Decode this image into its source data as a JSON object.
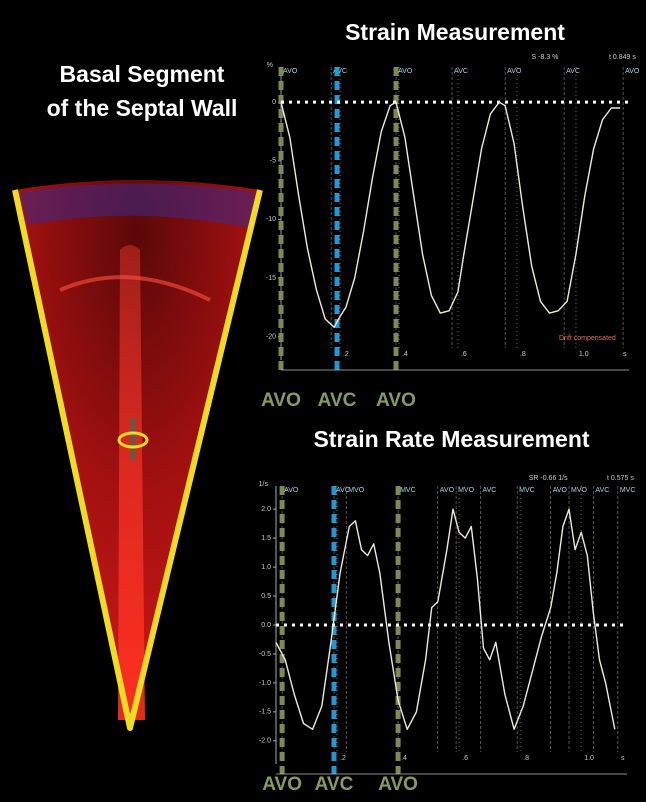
{
  "panel_title": [
    "Basal Segment",
    "of the Septal Wall"
  ],
  "chart_data": [
    {
      "type": "line",
      "title": "Strain Measurement",
      "y_label": "%",
      "x_label": "s",
      "annotations": [
        "S -8.3 %",
        "t 0.849 s",
        "Drift compensated"
      ],
      "x": [
        0,
        0.03,
        0.06,
        0.09,
        0.12,
        0.15,
        0.18,
        0.2,
        0.22,
        0.25,
        0.28,
        0.31,
        0.34,
        0.37,
        0.39,
        0.42,
        0.45,
        0.48,
        0.51,
        0.54,
        0.57,
        0.6,
        0.62,
        0.65,
        0.68,
        0.71,
        0.74,
        0.76,
        0.79,
        0.82,
        0.85,
        0.88,
        0.91,
        0.94,
        0.97,
        1.0,
        1.03,
        1.06,
        1.09,
        1.12,
        1.15
      ],
      "values": [
        0,
        -3,
        -8,
        -12.5,
        -16,
        -18.5,
        -19.2,
        -18.3,
        -17.5,
        -15,
        -11,
        -6.5,
        -2.5,
        -0.3,
        0,
        -3,
        -8,
        -13,
        -16.5,
        -18,
        -17.8,
        -16.2,
        -13,
        -8.5,
        -4,
        -1,
        0,
        -0.3,
        -3.5,
        -9,
        -14,
        -17,
        -18,
        -17.8,
        -17,
        -13,
        -8,
        -4,
        -1.5,
        -0.5,
        -0.5
      ],
      "color": "#ecebdc",
      "xlim": [
        0,
        1.18
      ],
      "ylim": [
        -22,
        3
      ],
      "xticks": [
        {
          "value": 0.2,
          "label": ".2"
        },
        {
          "value": 0.4,
          "label": ".4"
        },
        {
          "value": 0.6,
          "label": ".6"
        },
        {
          "value": 0.8,
          "label": ".8"
        },
        {
          "value": 1,
          "label": "1.0"
        }
      ],
      "yticks": [
        0,
        -5,
        -10,
        -15,
        -20
      ],
      "hline": 0,
      "events": [
        {
          "label": "AVO",
          "x": 0
        },
        {
          "label": "AVC",
          "x": 0.17
        },
        {
          "label": "AVO",
          "x": 0.39
        },
        {
          "label": "AVC",
          "x": 0.58
        },
        {
          "label": "AVO",
          "x": 0.76
        },
        {
          "label": "AVC",
          "x": 0.96
        },
        {
          "label": "AVO",
          "x": 1.16
        }
      ],
      "markers": [
        {
          "label": "AVO",
          "x": 0,
          "color": "#7d8a52"
        },
        {
          "label": "AVC",
          "x": 0.19,
          "color": "#1e9bd7"
        },
        {
          "label": "AVO",
          "x": 0.39,
          "color": "#7d8a52"
        }
      ]
    },
    {
      "type": "line",
      "title": "Strain Rate Measurement",
      "y_label": "1/s",
      "x_label": "s",
      "annotations": [
        "SR -0.66 1/s",
        "t 0.575 s"
      ],
      "x": [
        0,
        0.03,
        0.06,
        0.09,
        0.12,
        0.15,
        0.18,
        0.21,
        0.24,
        0.26,
        0.28,
        0.3,
        0.32,
        0.34,
        0.37,
        0.4,
        0.43,
        0.46,
        0.49,
        0.51,
        0.53,
        0.56,
        0.58,
        0.6,
        0.62,
        0.64,
        0.66,
        0.68,
        0.7,
        0.72,
        0.75,
        0.78,
        0.81,
        0.84,
        0.87,
        0.9,
        0.92,
        0.94,
        0.96,
        0.98,
        1.0,
        1.02,
        1.04,
        1.06,
        1.08,
        1.11
      ],
      "values": [
        -0.3,
        -0.6,
        -1.2,
        -1.7,
        -1.8,
        -1.4,
        -0.3,
        0.9,
        1.7,
        1.8,
        1.3,
        1.2,
        1.4,
        0.9,
        -0.3,
        -1.3,
        -1.8,
        -1.5,
        -0.6,
        0.3,
        0.4,
        1.3,
        2.0,
        1.6,
        1.5,
        1.7,
        0.8,
        -0.4,
        -0.6,
        -0.3,
        -1.2,
        -1.8,
        -1.4,
        -0.8,
        -0.2,
        0.3,
        0.9,
        1.7,
        2.0,
        1.3,
        1.6,
        1.2,
        0.2,
        -0.6,
        -1.0,
        -1.8
      ],
      "color": "#ecebdc",
      "xlim": [
        0,
        1.15
      ],
      "ylim": [
        -2.4,
        2.4
      ],
      "xticks": [
        {
          "value": 0.2,
          "label": ".2"
        },
        {
          "value": 0.4,
          "label": ".4"
        },
        {
          "value": 0.6,
          "label": ".6"
        },
        {
          "value": 0.8,
          "label": ".8"
        },
        {
          "value": 1,
          "label": "1.0"
        }
      ],
      "yticks": [
        {
          "value": 2,
          "label": "2.0"
        },
        {
          "value": 1.5,
          "label": "1.5"
        },
        {
          "value": 1,
          "label": "1.0"
        },
        {
          "value": 0.5,
          "label": "0.5"
        },
        {
          "value": 0,
          "label": "0.0"
        },
        {
          "value": -0.5,
          "label": "-0.5"
        },
        {
          "value": -1,
          "label": "-1.0"
        },
        {
          "value": -1.5,
          "label": "-1.5"
        },
        {
          "value": -2,
          "label": "-2.0"
        }
      ],
      "hline": 0,
      "events": [
        {
          "label": "AVO",
          "x": 0.02
        },
        {
          "label": "AVC",
          "x": 0.19
        },
        {
          "label": "MVO",
          "x": 0.23
        },
        {
          "label": "MVC",
          "x": 0.4
        },
        {
          "label": "AVO",
          "x": 0.53
        },
        {
          "label": "MVO",
          "x": 0.59
        },
        {
          "label": "AVC",
          "x": 0.67
        },
        {
          "label": "MVC",
          "x": 0.79
        },
        {
          "label": "AVO",
          "x": 0.9
        },
        {
          "label": "MVO",
          "x": 0.96
        },
        {
          "label": "AVC",
          "x": 1.04
        },
        {
          "label": "MVC",
          "x": 1.12
        }
      ],
      "markers": [
        {
          "label": "AVO",
          "x": 0.02,
          "color": "#7d8a52"
        },
        {
          "label": "AVC",
          "x": 0.19,
          "color": "#1e9bd7"
        },
        {
          "label": "AVO",
          "x": 0.4,
          "color": "#7d8a52"
        }
      ]
    }
  ]
}
